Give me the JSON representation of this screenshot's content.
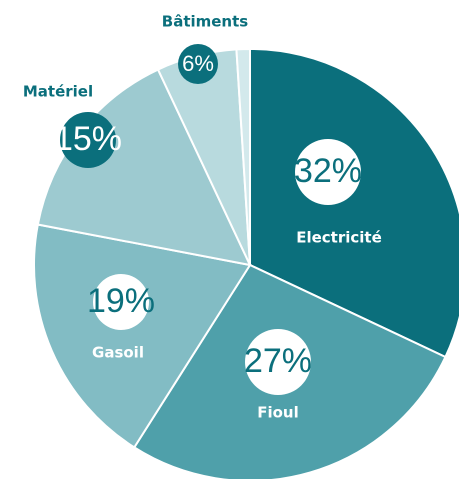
{
  "chart_data": {
    "type": "pie",
    "categories": [
      "Electricité",
      "Fioul",
      "Gasoil",
      "Matériel",
      "Bâtiments",
      null
    ],
    "values": [
      32,
      27,
      19,
      15,
      6,
      1
    ],
    "value_labels": [
      "32%",
      "27%",
      "19%",
      "15%",
      "6%",
      null
    ],
    "colors": [
      "#0b6f7c",
      "#4fa0aa",
      "#82bcc4",
      "#9dcad0",
      "#b8dade",
      "#d3e9ec"
    ]
  }
}
